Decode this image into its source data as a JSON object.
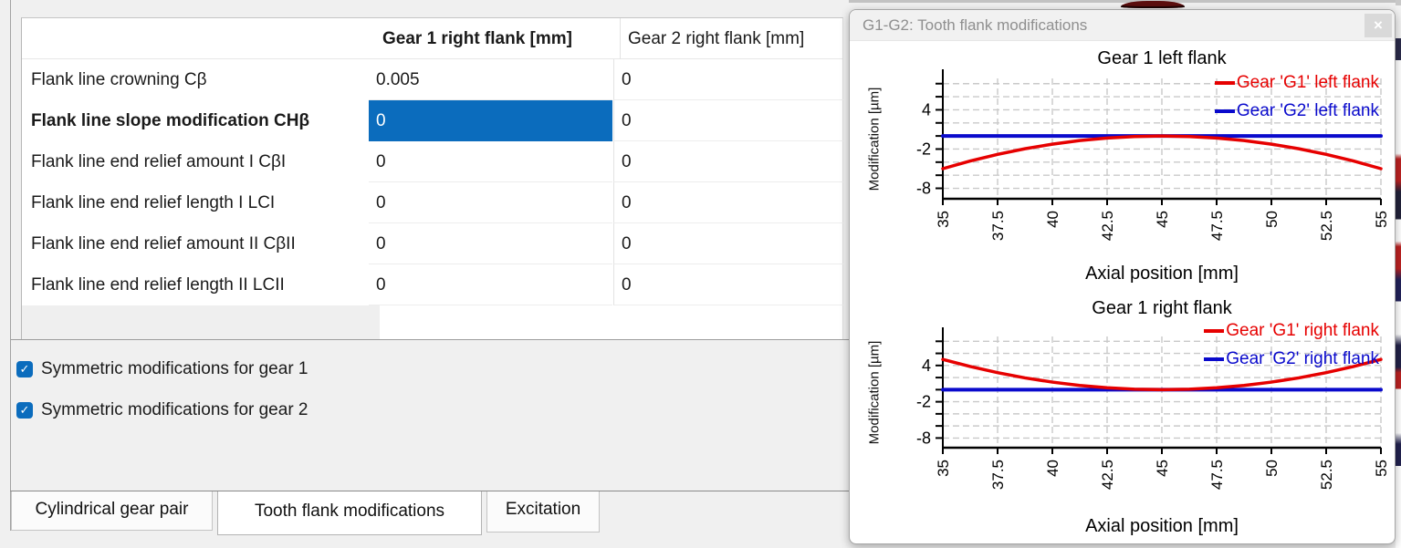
{
  "colors": {
    "accent": "#0b6cbd",
    "app_background": "#f0f0f0",
    "series_red": "#e60000",
    "series_blue": "#0a0acc",
    "grid": "#c9c9c9"
  },
  "panel": {
    "table": {
      "columns": [
        "",
        "Gear 1 right flank [mm]",
        "Gear 2 right flank [mm]"
      ],
      "rows": [
        {
          "label": "Flank line crowning Cβ",
          "gear1": "0.005",
          "gear2": "0"
        },
        {
          "label": "Flank line slope modification CHβ",
          "gear1": "0",
          "gear2": "0",
          "selected": "gear1",
          "bold": true
        },
        {
          "label": "Flank line end relief amount I CβI",
          "gear1": "0",
          "gear2": "0"
        },
        {
          "label": "Flank line end relief length I LCI",
          "gear1": "0",
          "gear2": "0"
        },
        {
          "label": "Flank line end relief amount II CβII",
          "gear1": "0",
          "gear2": "0"
        },
        {
          "label": "Flank line end relief length II LCII",
          "gear1": "0",
          "gear2": "0"
        }
      ]
    },
    "checkboxes": [
      {
        "label": "Symmetric modifications for gear 1",
        "checked": true
      },
      {
        "label": "Symmetric modifications for gear 2",
        "checked": true
      }
    ],
    "tabs": [
      {
        "label": "Cylindrical gear pair",
        "active": false
      },
      {
        "label": "Tooth flank modifications",
        "active": true
      },
      {
        "label": "Excitation",
        "active": false
      }
    ]
  },
  "window": {
    "title": "G1-G2: Tooth flank modifications",
    "close_glyph": "×"
  },
  "chart_data": [
    {
      "type": "line",
      "title": "Gear 1 left flank",
      "xlabel": "Axial position [mm]",
      "ylabel": "Modification [µm]",
      "xlim": [
        35,
        55
      ],
      "ylim": [
        -9.6,
        8.8
      ],
      "x_ticks": [
        35,
        37.5,
        40,
        42.5,
        45,
        47.5,
        50,
        52.5,
        55
      ],
      "y_grid_values": [
        8,
        6,
        4,
        2,
        0,
        -2,
        -4,
        -6,
        -8
      ],
      "y_labeled_ticks": [
        4,
        -2,
        -8
      ],
      "grid": true,
      "legend_position": "top-right",
      "x": [
        35,
        36.25,
        37.5,
        38.75,
        40,
        41.25,
        42.5,
        43.75,
        45,
        46.25,
        47.5,
        48.75,
        50,
        51.25,
        52.5,
        53.75,
        55
      ],
      "series": [
        {
          "name": "Gear 'G1' left flank",
          "color": "#e60000",
          "values": [
            -5,
            -3.83,
            -2.81,
            -1.95,
            -1.25,
            -0.7,
            -0.31,
            -0.08,
            0,
            -0.08,
            -0.31,
            -0.7,
            -1.25,
            -1.95,
            -2.81,
            -3.83,
            -5
          ]
        },
        {
          "name": "Gear 'G2' left flank",
          "color": "#0a0acc",
          "values": [
            0,
            0,
            0,
            0,
            0,
            0,
            0,
            0,
            0,
            0,
            0,
            0,
            0,
            0,
            0,
            0,
            0
          ]
        }
      ]
    },
    {
      "type": "line",
      "title": "Gear 1 right flank",
      "xlabel": "Axial position [mm]",
      "ylabel": "Modification [µm]",
      "xlim": [
        35,
        55
      ],
      "ylim": [
        -9.6,
        8.8
      ],
      "x_ticks": [
        35,
        37.5,
        40,
        42.5,
        45,
        47.5,
        50,
        52.5,
        55
      ],
      "y_grid_values": [
        8,
        6,
        4,
        2,
        0,
        -2,
        -4,
        -6,
        -8
      ],
      "y_labeled_ticks": [
        4,
        -2,
        -8
      ],
      "grid": true,
      "legend_position": "top-right",
      "x": [
        35,
        36.25,
        37.5,
        38.75,
        40,
        41.25,
        42.5,
        43.75,
        45,
        46.25,
        47.5,
        48.75,
        50,
        51.25,
        52.5,
        53.75,
        55
      ],
      "series": [
        {
          "name": "Gear 'G1' right flank",
          "color": "#e60000",
          "values": [
            5,
            3.83,
            2.81,
            1.95,
            1.25,
            0.7,
            0.31,
            0.08,
            0,
            0.08,
            0.31,
            0.7,
            1.25,
            1.95,
            2.81,
            3.83,
            5
          ]
        },
        {
          "name": "Gear 'G2' right flank",
          "color": "#0a0acc",
          "values": [
            0,
            0,
            0,
            0,
            0,
            0,
            0,
            0,
            0,
            0,
            0,
            0,
            0,
            0,
            0,
            0,
            0
          ]
        }
      ]
    }
  ]
}
